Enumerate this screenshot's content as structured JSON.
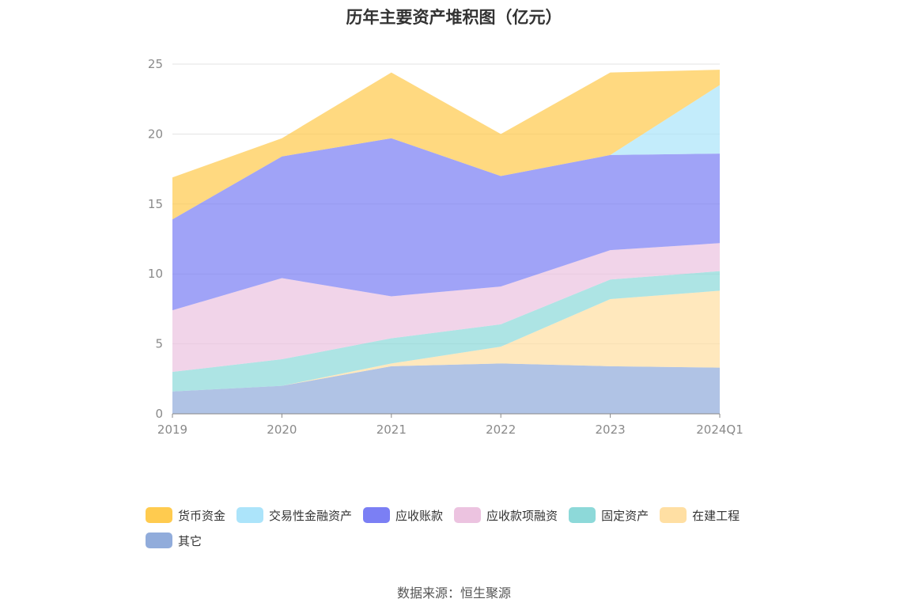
{
  "title": "历年主要资产堆积图（亿元）",
  "source": "数据来源：恒生聚源",
  "chart_data": {
    "type": "area",
    "stacked": true,
    "categories": [
      "2019",
      "2020",
      "2021",
      "2022",
      "2023",
      "2024Q1"
    ],
    "ylim": [
      0,
      25
    ],
    "yticks": [
      "0",
      "5",
      "10",
      "15",
      "20",
      "25"
    ],
    "grid": true,
    "legend_position": "bottom",
    "series": [
      {
        "name": "其它",
        "color": "#91acdb",
        "values": [
          1.6,
          2.0,
          3.4,
          3.6,
          3.4,
          3.3
        ]
      },
      {
        "name": "在建工程",
        "color": "#ffdfa3",
        "values": [
          0.0,
          0.0,
          0.2,
          1.2,
          4.8,
          5.5
        ]
      },
      {
        "name": "固定资产",
        "color": "#8dd9d9",
        "values": [
          1.4,
          1.9,
          1.8,
          1.6,
          1.4,
          1.4
        ]
      },
      {
        "name": "应收款项融资",
        "color": "#ecc3e0",
        "values": [
          4.4,
          5.8,
          3.0,
          2.7,
          2.1,
          2.0
        ]
      },
      {
        "name": "应收账款",
        "color": "#7b7ff4",
        "values": [
          6.5,
          8.7,
          11.3,
          7.9,
          6.8,
          6.4
        ]
      },
      {
        "name": "交易性金融资产",
        "color": "#ace4fa",
        "values": [
          0.0,
          0.0,
          0.0,
          0.0,
          0.0,
          4.9
        ]
      },
      {
        "name": "货币资金",
        "color": "#ffcb4f",
        "values": [
          3.0,
          1.3,
          4.7,
          3.0,
          5.9,
          1.1
        ]
      }
    ],
    "legend_order": [
      "货币资金",
      "交易性金融资产",
      "应收账款",
      "应收款项融资",
      "固定资产",
      "在建工程",
      "其它"
    ]
  }
}
